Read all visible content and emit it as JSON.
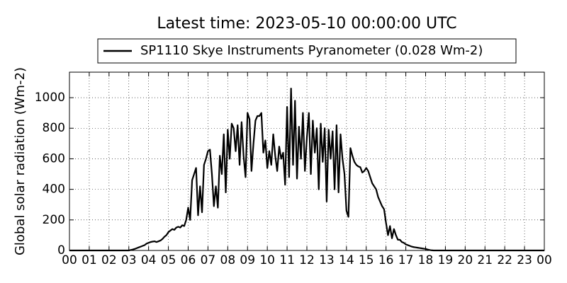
{
  "chart_data": {
    "type": "line",
    "title": "Latest time: 2023-05-10 00:00:00 UTC",
    "ylabel": "Global solar radiation (Wm-2)",
    "legend": "top",
    "grid": true,
    "xlim": [
      0,
      24
    ],
    "ylim": [
      0,
      1167
    ],
    "yticks": [
      0,
      200,
      400,
      600,
      800,
      1000
    ],
    "xticks": [
      {
        "value": 0,
        "label": "00"
      },
      {
        "value": 1,
        "label": "01"
      },
      {
        "value": 2,
        "label": "02"
      },
      {
        "value": 3,
        "label": "03"
      },
      {
        "value": 4,
        "label": "04"
      },
      {
        "value": 5,
        "label": "05"
      },
      {
        "value": 6,
        "label": "06"
      },
      {
        "value": 7,
        "label": "07"
      },
      {
        "value": 8,
        "label": "08"
      },
      {
        "value": 9,
        "label": "09"
      },
      {
        "value": 10,
        "label": "10"
      },
      {
        "value": 11,
        "label": "11"
      },
      {
        "value": 12,
        "label": "12"
      },
      {
        "value": 13,
        "label": "13"
      },
      {
        "value": 14,
        "label": "14"
      },
      {
        "value": 15,
        "label": "15"
      },
      {
        "value": 16,
        "label": "16"
      },
      {
        "value": 17,
        "label": "17"
      },
      {
        "value": 18,
        "label": "18"
      },
      {
        "value": 19,
        "label": "19"
      },
      {
        "value": 20,
        "label": "20"
      },
      {
        "value": 21,
        "label": "21"
      },
      {
        "value": 22,
        "label": "22"
      },
      {
        "value": 23,
        "label": "23"
      },
      {
        "value": 24,
        "label": "00"
      }
    ],
    "x": [
      0,
      3.0,
      3.1,
      3.2,
      3.3,
      3.4,
      3.5,
      3.6,
      3.7,
      3.8,
      3.9,
      4.0,
      4.1,
      4.2,
      4.3,
      4.4,
      4.5,
      4.6,
      4.7,
      4.8,
      4.9,
      5.0,
      5.1,
      5.2,
      5.3,
      5.4,
      5.5,
      5.6,
      5.7,
      5.8,
      5.9,
      6.0,
      6.1,
      6.2,
      6.3,
      6.4,
      6.5,
      6.6,
      6.7,
      6.8,
      6.9,
      7.0,
      7.1,
      7.2,
      7.3,
      7.4,
      7.5,
      7.6,
      7.7,
      7.8,
      7.9,
      8.0,
      8.1,
      8.2,
      8.3,
      8.4,
      8.5,
      8.6,
      8.7,
      8.8,
      8.9,
      9.0,
      9.1,
      9.2,
      9.3,
      9.4,
      9.5,
      9.6,
      9.7,
      9.8,
      9.9,
      10.0,
      10.1,
      10.2,
      10.3,
      10.4,
      10.5,
      10.6,
      10.7,
      10.8,
      10.9,
      11.0,
      11.1,
      11.2,
      11.3,
      11.4,
      11.5,
      11.6,
      11.7,
      11.8,
      11.9,
      12.0,
      12.1,
      12.2,
      12.3,
      12.4,
      12.5,
      12.6,
      12.7,
      12.8,
      12.9,
      13.0,
      13.1,
      13.2,
      13.3,
      13.4,
      13.5,
      13.6,
      13.7,
      13.8,
      13.9,
      14.0,
      14.1,
      14.2,
      14.3,
      14.4,
      14.5,
      14.6,
      14.7,
      14.8,
      14.9,
      15.0,
      15.1,
      15.2,
      15.3,
      15.4,
      15.5,
      15.6,
      15.7,
      15.8,
      15.9,
      16.0,
      16.1,
      16.2,
      16.3,
      16.4,
      16.5,
      16.6,
      16.7,
      16.8,
      16.9,
      17.0,
      17.1,
      17.2,
      17.3,
      17.4,
      17.5,
      17.6,
      17.7,
      17.8,
      17.9,
      18.0,
      18.1,
      18.2,
      18.3,
      18.4,
      24
    ],
    "series": [
      {
        "name": "SP1110 Skye Instruments Pyranometer (0.028 Wm-2)",
        "color": "#000000",
        "values": [
          0,
          0,
          3,
          6,
          10,
          15,
          20,
          25,
          30,
          35,
          45,
          50,
          55,
          58,
          60,
          55,
          60,
          65,
          75,
          90,
          100,
          120,
          130,
          140,
          135,
          150,
          155,
          150,
          165,
          160,
          200,
          280,
          200,
          460,
          500,
          540,
          230,
          420,
          250,
          560,
          600,
          650,
          660,
          500,
          290,
          420,
          280,
          620,
          500,
          760,
          380,
          790,
          600,
          830,
          800,
          650,
          820,
          560,
          840,
          620,
          480,
          900,
          860,
          520,
          700,
          850,
          880,
          880,
          900,
          640,
          720,
          540,
          650,
          560,
          760,
          620,
          520,
          680,
          600,
          640,
          430,
          940,
          480,
          1060,
          560,
          980,
          470,
          810,
          600,
          900,
          520,
          740,
          900,
          500,
          850,
          640,
          800,
          400,
          830,
          580,
          800,
          320,
          790,
          600,
          780,
          400,
          820,
          380,
          760,
          600,
          500,
          260,
          220,
          670,
          620,
          580,
          560,
          550,
          545,
          510,
          520,
          540,
          520,
          480,
          440,
          420,
          400,
          350,
          320,
          290,
          270,
          180,
          100,
          160,
          80,
          140,
          100,
          70,
          70,
          55,
          50,
          40,
          35,
          30,
          25,
          22,
          20,
          18,
          16,
          14,
          12,
          10,
          6,
          3,
          1,
          0,
          0
        ]
      }
    ]
  }
}
